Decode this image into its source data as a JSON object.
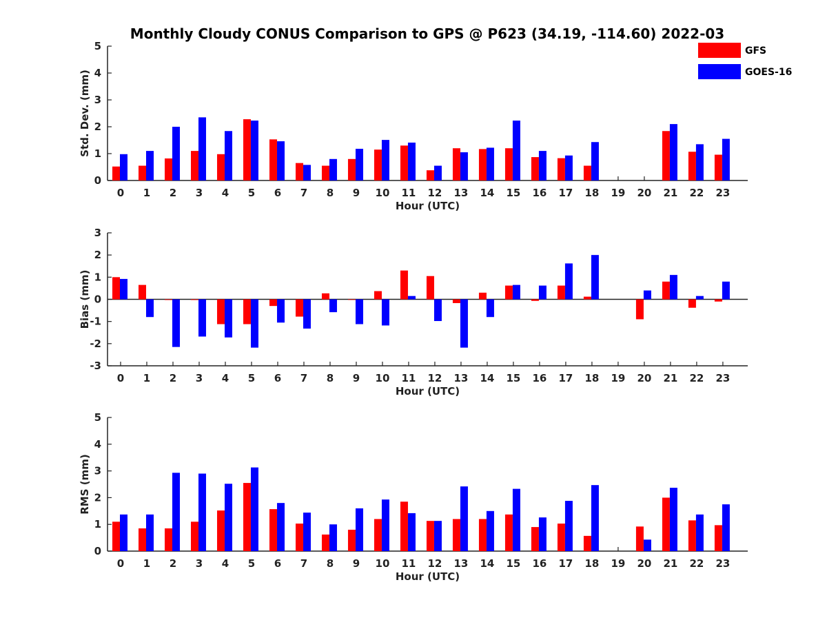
{
  "title": "Monthly Cloudy CONUS Comparison to GPS @ P623 (34.19, -114.60) 2022-03",
  "legend": {
    "placement": "top-right",
    "items": [
      {
        "label": "GFS",
        "color": "#ff0000"
      },
      {
        "label": "GOES-16",
        "color": "#0000ff"
      }
    ]
  },
  "chart_data": [
    {
      "type": "bar",
      "xlabel": "Hour (UTC)",
      "ylabel": "Std. Dev. (mm)",
      "ylim": [
        0,
        5
      ],
      "yticks": [
        "0",
        "1",
        "2",
        "3",
        "4",
        "5"
      ],
      "categories": [
        "0",
        "1",
        "2",
        "3",
        "4",
        "5",
        "6",
        "7",
        "8",
        "9",
        "10",
        "11",
        "12",
        "13",
        "14",
        "15",
        "16",
        "17",
        "18",
        "19",
        "20",
        "21",
        "22",
        "23"
      ],
      "series": [
        {
          "name": "GFS",
          "color": "#ff0000",
          "values": [
            0.52,
            0.55,
            0.82,
            1.1,
            0.98,
            2.28,
            1.53,
            0.65,
            0.55,
            0.8,
            1.15,
            1.3,
            0.38,
            1.2,
            1.17,
            1.2,
            0.87,
            0.83,
            0.55,
            null,
            null,
            1.84,
            1.07,
            0.96
          ]
        },
        {
          "name": "GOES-16",
          "color": "#0000ff",
          "values": [
            0.98,
            1.1,
            2.0,
            2.35,
            1.84,
            2.23,
            1.46,
            0.58,
            0.8,
            1.18,
            1.51,
            1.41,
            0.55,
            1.05,
            1.22,
            2.23,
            1.1,
            0.93,
            1.43,
            null,
            null,
            2.1,
            1.35,
            1.55
          ]
        }
      ]
    },
    {
      "type": "bar",
      "xlabel": "Hour (UTC)",
      "ylabel": "Bias (mm)",
      "ylim": [
        -3,
        3
      ],
      "yticks": [
        "-3",
        "-2",
        "-1",
        "0",
        "1",
        "2",
        "3"
      ],
      "categories": [
        "0",
        "1",
        "2",
        "3",
        "4",
        "5",
        "6",
        "7",
        "8",
        "9",
        "10",
        "11",
        "12",
        "13",
        "14",
        "15",
        "16",
        "17",
        "18",
        "19",
        "20",
        "21",
        "22",
        "23"
      ],
      "series": [
        {
          "name": "GFS",
          "color": "#ff0000",
          "values": [
            1.0,
            0.65,
            -0.03,
            -0.03,
            -1.12,
            -1.12,
            -0.3,
            -0.78,
            0.27,
            0,
            0.37,
            1.3,
            1.05,
            -0.17,
            0.3,
            0.62,
            -0.07,
            0.62,
            0.12,
            null,
            -0.9,
            0.8,
            -0.38,
            -0.1
          ]
        },
        {
          "name": "GOES-16",
          "color": "#0000ff",
          "values": [
            0.92,
            -0.8,
            -2.15,
            -1.68,
            -1.72,
            -2.18,
            -1.05,
            -1.32,
            -0.58,
            -1.12,
            -1.18,
            0.15,
            -0.98,
            -2.18,
            -0.8,
            0.65,
            0.62,
            1.62,
            2.0,
            null,
            0.4,
            1.1,
            0.15,
            0.8
          ]
        }
      ]
    },
    {
      "type": "bar",
      "xlabel": "Hour (UTC)",
      "ylabel": "RMS (mm)",
      "ylim": [
        0,
        5
      ],
      "yticks": [
        "0",
        "1",
        "2",
        "3",
        "4",
        "5"
      ],
      "categories": [
        "0",
        "1",
        "2",
        "3",
        "4",
        "5",
        "6",
        "7",
        "8",
        "9",
        "10",
        "11",
        "12",
        "13",
        "14",
        "15",
        "16",
        "17",
        "18",
        "19",
        "20",
        "21",
        "22",
        "23"
      ],
      "series": [
        {
          "name": "GFS",
          "color": "#ff0000",
          "values": [
            1.1,
            0.85,
            0.85,
            1.1,
            1.52,
            2.55,
            1.57,
            1.03,
            0.62,
            0.8,
            1.2,
            1.85,
            1.13,
            1.2,
            1.2,
            1.37,
            0.9,
            1.03,
            0.57,
            null,
            0.92,
            2.0,
            1.15,
            0.97
          ]
        },
        {
          "name": "GOES-16",
          "color": "#0000ff",
          "values": [
            1.37,
            1.37,
            2.93,
            2.9,
            2.52,
            3.13,
            1.8,
            1.44,
            1.0,
            1.6,
            1.93,
            1.42,
            1.13,
            2.42,
            1.5,
            2.33,
            1.26,
            1.88,
            2.47,
            null,
            0.43,
            2.37,
            1.37,
            1.75
          ]
        }
      ]
    }
  ]
}
